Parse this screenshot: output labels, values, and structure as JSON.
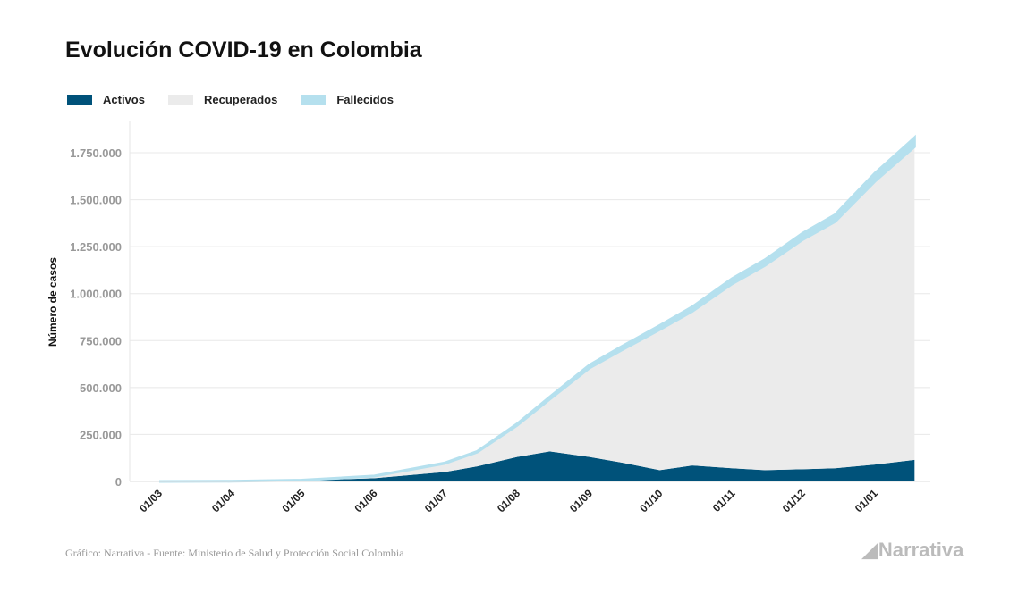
{
  "chart_data": {
    "type": "area",
    "title": "Evolución COVID-19 en Colombia",
    "xlabel": "",
    "ylabel": "Número de casos",
    "ylim": [
      0,
      1850000
    ],
    "yticks": [
      0,
      250000,
      500000,
      750000,
      1000000,
      1250000,
      1500000,
      1750000
    ],
    "ytick_labels": [
      "0",
      "250.000",
      "500.000",
      "750.000",
      "1.000.000",
      "1.250.000",
      "1.500.000",
      "1.750.000"
    ],
    "xtick_labels": [
      "01/03",
      "01/04",
      "01/05",
      "01/06",
      "01/07",
      "01/08",
      "01/09",
      "01/10",
      "01/11",
      "01/12",
      "01/01"
    ],
    "xtick_days": [
      0,
      31,
      61,
      92,
      122,
      153,
      184,
      214,
      245,
      275,
      306
    ],
    "days": [
      0,
      31,
      61,
      92,
      122,
      136,
      153,
      167,
      184,
      198,
      214,
      228,
      245,
      259,
      275,
      289,
      306,
      323
    ],
    "series": [
      {
        "name": "Activos",
        "color": "#00527a",
        "values": [
          0,
          800,
          5000,
          17000,
          50000,
          80000,
          130000,
          160000,
          130000,
          100000,
          60000,
          85000,
          70000,
          60000,
          65000,
          70000,
          90000,
          115000
        ]
      },
      {
        "name": "Recuperados",
        "color": "#ebebeb",
        "values": [
          0,
          150,
          1700,
          11300,
          45500,
          76000,
          168000,
          278000,
          474000,
          601000,
          748000,
          821000,
          982000,
          1090000,
          1221000,
          1313000,
          1507000,
          1667000
        ]
      },
      {
        "name": "Fallecidos",
        "color": "#b5e0ee",
        "values": [
          0,
          50,
          300,
          700,
          2500,
          4000,
          8000,
          12000,
          16000,
          19000,
          22000,
          24000,
          28000,
          30000,
          34000,
          37000,
          43000,
          48000
        ]
      }
    ],
    "grid": true,
    "legend": "top-left"
  },
  "source": "Gráfico: Narrativa - Fuente: Ministerio de Salud y Protección Social Colombia",
  "logo": "Narrativa"
}
